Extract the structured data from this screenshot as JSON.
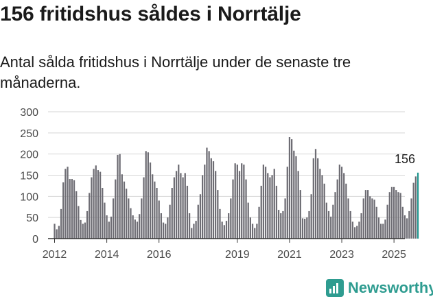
{
  "header": {
    "title": "156 fritidshus såldes i Norrtälje",
    "subtitle": "Antal sålda fritidshus i Norrtälje under de senaste tre månaderna."
  },
  "brand": {
    "name": "Newsworthy",
    "icon": "chart-logo-icon",
    "color": "#2e9c90"
  },
  "colors": {
    "bar": "#6e6d74",
    "highlight": "#22968f",
    "grid": "#d5d5d5"
  },
  "chart_data": {
    "type": "bar",
    "title": "",
    "xlabel": "",
    "ylabel": "",
    "ylim": [
      0,
      300
    ],
    "yticks": [
      0,
      50,
      100,
      150,
      200,
      250,
      300
    ],
    "xticks": [
      "2012",
      "2014",
      "2016",
      "2019",
      "2021",
      "2023",
      "2025"
    ],
    "x_range": [
      "2011-10",
      "2025-06"
    ],
    "grid": true,
    "annotation": {
      "label": "156",
      "x": "2025-06",
      "y": 156
    },
    "series": [
      {
        "start": "2012-01",
        "values": [
          35,
          22,
          30,
          70,
          133,
          165,
          170,
          141,
          141,
          138,
          112,
          77,
          44,
          35,
          38,
          65,
          108,
          145,
          165,
          173,
          162,
          158,
          120,
          85,
          55,
          40,
          52,
          95,
          140,
          198,
          200,
          152,
          135,
          118,
          95,
          72,
          55,
          45,
          40,
          58,
          95,
          145,
          207,
          204,
          180,
          152,
          135,
          120,
          90,
          60,
          38,
          35,
          50,
          80,
          120,
          145,
          160,
          175,
          155,
          145,
          155,
          125,
          60,
          25,
          35,
          42,
          80,
          105,
          150,
          175,
          215,
          207,
          190,
          183,
          160,
          115,
          70,
          40,
          32,
          42,
          60,
          95,
          140,
          178,
          175,
          160,
          178,
          175,
          140,
          85,
          50,
          35,
          25,
          35,
          75,
          125,
          175,
          170,
          155,
          145,
          150,
          165,
          125,
          68,
          60,
          65,
          95,
          170,
          240,
          235,
          208,
          195,
          160,
          115,
          48,
          47,
          50,
          65,
          105,
          190,
          212,
          190,
          165,
          150,
          130,
          85,
          65,
          52,
          80,
          110,
          140,
          175,
          170,
          155,
          130,
          95,
          65,
          40,
          27,
          30,
          40,
          60,
          95,
          115,
          115,
          100,
          95,
          92,
          75,
          50,
          35,
          35,
          45,
          80,
          110,
          122,
          122,
          115,
          110,
          108,
          75,
          55,
          48,
          65,
          95,
          132,
          147,
          156
        ]
      }
    ]
  }
}
